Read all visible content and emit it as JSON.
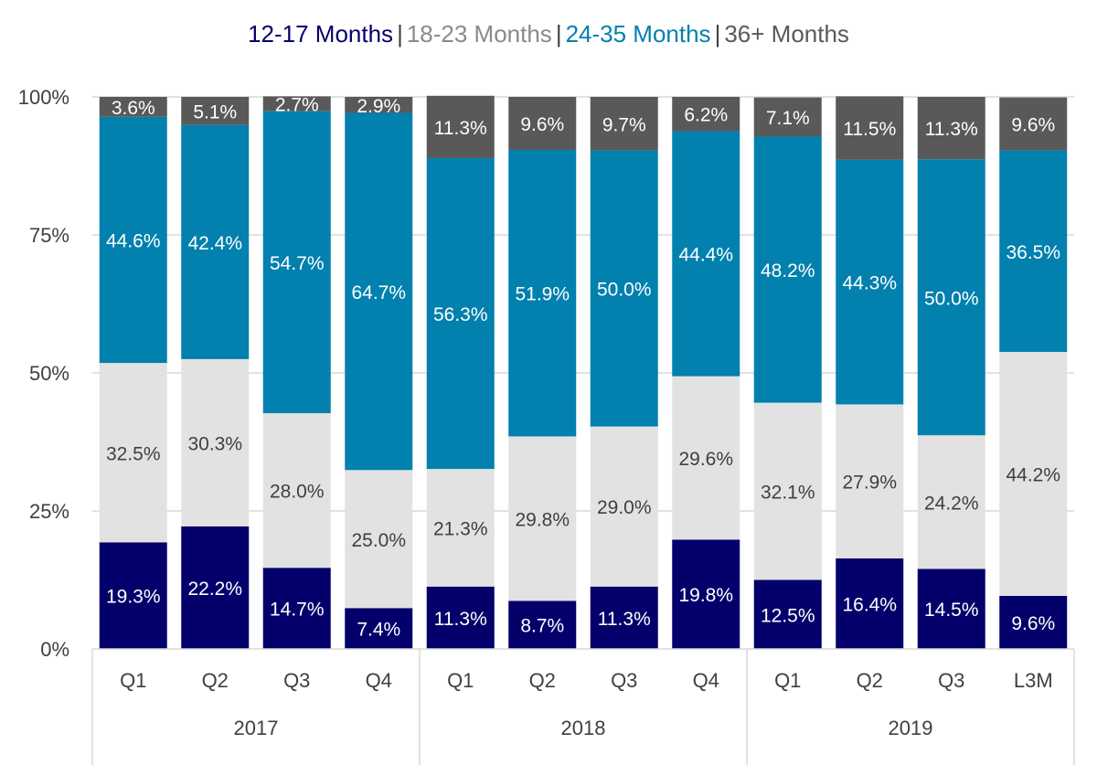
{
  "chart_data": {
    "type": "bar",
    "stacked": true,
    "legend": {
      "position": "top",
      "separator": "|",
      "entries": [
        "12-17 Months",
        "18-23 Months",
        "24-35 Months",
        "36+ Months"
      ]
    },
    "groups": [
      {
        "label": "2017",
        "categories": [
          "Q1",
          "Q2",
          "Q3",
          "Q4"
        ]
      },
      {
        "label": "2018",
        "categories": [
          "Q1",
          "Q2",
          "Q3",
          "Q4"
        ]
      },
      {
        "label": "2019",
        "categories": [
          "Q1",
          "Q2",
          "Q3",
          "L3M"
        ]
      }
    ],
    "yticks": [
      "0%",
      "25%",
      "50%",
      "75%",
      "100%"
    ],
    "ylim": [
      0,
      100
    ],
    "series": [
      {
        "name": "12-17 Months",
        "color": "#04006b",
        "label_color": "#ffffff",
        "values": [
          19.3,
          22.2,
          14.7,
          7.4,
          11.3,
          8.7,
          11.3,
          19.8,
          12.5,
          16.4,
          14.5,
          9.6
        ],
        "labels": [
          "19.3%",
          "22.2%",
          "14.7%",
          "7.4%",
          "11.3%",
          "8.7%",
          "11.3%",
          "19.8%",
          "12.5%",
          "16.4%",
          "14.5%",
          "9.6%"
        ]
      },
      {
        "name": "18-23 Months",
        "color": "#e2e2e2",
        "label_color": "#404040",
        "values": [
          32.5,
          30.3,
          28.0,
          25.0,
          21.3,
          29.8,
          29.0,
          29.6,
          32.1,
          27.9,
          24.2,
          44.2
        ],
        "labels": [
          "32.5%",
          "30.3%",
          "28.0%",
          "25.0%",
          "21.3%",
          "29.8%",
          "29.0%",
          "29.6%",
          "32.1%",
          "27.9%",
          "24.2%",
          "44.2%"
        ]
      },
      {
        "name": "24-35 Months",
        "color": "#0280ae",
        "label_color": "#ffffff",
        "values": [
          44.6,
          42.4,
          54.7,
          64.7,
          56.3,
          51.9,
          50.0,
          44.4,
          48.2,
          44.3,
          50.0,
          36.5
        ],
        "labels": [
          "44.6%",
          "42.4%",
          "54.7%",
          "64.7%",
          "56.3%",
          "51.9%",
          "50.0%",
          "44.4%",
          "48.2%",
          "44.3%",
          "50.0%",
          "36.5%"
        ]
      },
      {
        "name": "36+ Months",
        "color": "#595959",
        "label_color": "#ffffff",
        "values": [
          3.6,
          5.1,
          2.7,
          2.9,
          11.3,
          9.6,
          9.7,
          6.2,
          7.1,
          11.5,
          11.3,
          9.6
        ],
        "labels": [
          "3.6%",
          "5.1%",
          "2.7%",
          "2.9%",
          "11.3%",
          "9.6%",
          "9.7%",
          "6.2%",
          "7.1%",
          "11.5%",
          "11.3%",
          "9.6%"
        ]
      }
    ],
    "legend_colors": [
      "#04006b",
      "#8a8a8a",
      "#0280ae",
      "#595959"
    ],
    "grid": true
  }
}
